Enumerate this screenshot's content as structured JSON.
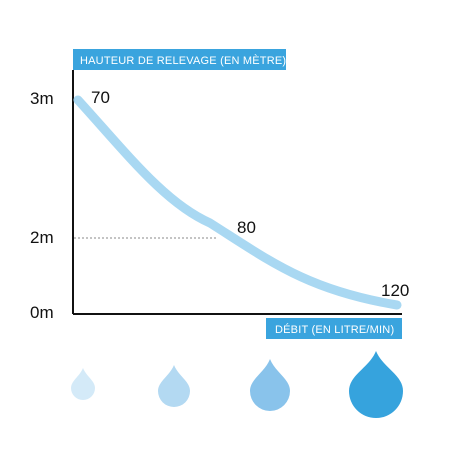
{
  "chart_data": {
    "type": "line",
    "ylabel": "HAUTEUR DE RELEVAGE (EN MÈTRE)",
    "xlabel": "DÉBIT (EN LITRE/MIN)",
    "y_ticks": [
      "3m",
      "2m",
      "0m"
    ],
    "ylim": [
      0,
      3
    ],
    "series": [
      {
        "points": [
          {
            "flow": 70,
            "height": 3,
            "label": "70"
          },
          {
            "flow": 80,
            "height": 2,
            "label": "80"
          },
          {
            "flow": 120,
            "height": 0,
            "label": "120"
          }
        ]
      }
    ],
    "grid": false,
    "legend": "none"
  },
  "colors": {
    "accent": "#3aa4de",
    "curve": "#a9d8f2",
    "axis": "#111111",
    "drop_1": "#d4eaf8",
    "drop_2": "#b3d9f2",
    "drop_3": "#89c3eb",
    "drop_4": "#36a3dd"
  },
  "icons": [
    "water-drop-small-icon",
    "water-drop-medium-icon",
    "water-drop-large-icon",
    "water-drop-xlarge-icon"
  ]
}
